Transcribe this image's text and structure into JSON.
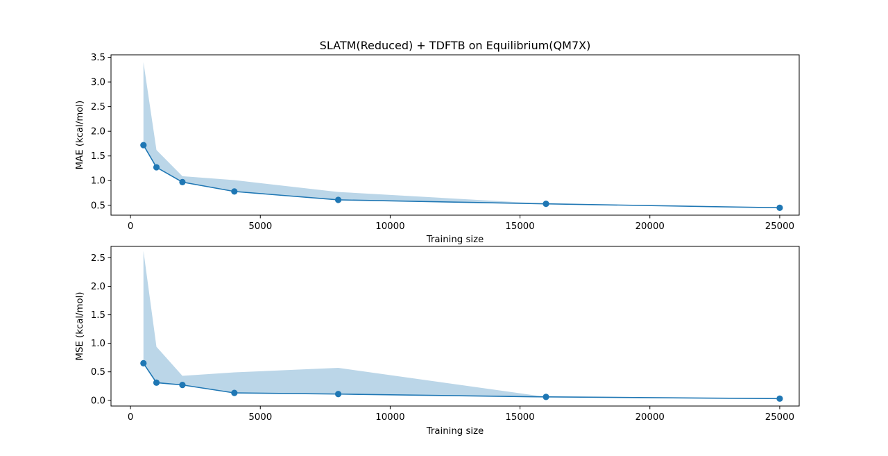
{
  "figure": {
    "title": "SLATM(Reduced) + TDFTB on Equilibrium(QM7X)",
    "line_color": "#1f77b4",
    "band_color": "#1f77b4"
  },
  "chart_data": [
    {
      "type": "line",
      "title": "SLATM(Reduced) + TDFTB on Equilibrium(QM7X)",
      "xlabel": "Training size",
      "ylabel": "MAE (kcal/mol)",
      "xlim": [
        -750,
        25750
      ],
      "ylim": [
        0.3,
        3.55
      ],
      "xticks": [
        0,
        5000,
        10000,
        15000,
        20000,
        25000
      ],
      "xtick_labels": [
        "0",
        "5000",
        "10000",
        "15000",
        "20000",
        "25000"
      ],
      "yticks": [
        0.5,
        1.0,
        1.5,
        2.0,
        2.5,
        3.0,
        3.5
      ],
      "ytick_labels": [
        "0.5",
        "1.0",
        "1.5",
        "2.0",
        "2.5",
        "3.0",
        "3.5"
      ],
      "x": [
        500,
        1000,
        2000,
        4000,
        8000,
        16000,
        25000
      ],
      "series": [
        {
          "values": [
            1.72,
            1.27,
            0.97,
            0.78,
            0.61,
            0.53,
            0.45
          ],
          "upper": [
            3.4,
            1.62,
            1.09,
            1.01,
            0.77,
            0.53,
            0.45
          ],
          "lower": [
            1.72,
            1.27,
            0.97,
            0.78,
            0.61,
            0.53,
            0.45
          ]
        }
      ],
      "grid": false
    },
    {
      "type": "line",
      "title": "",
      "xlabel": "Training size",
      "ylabel": "MSE (kcal/mol)",
      "xlim": [
        -750,
        25750
      ],
      "ylim": [
        -0.1,
        2.7
      ],
      "xticks": [
        0,
        5000,
        10000,
        15000,
        20000,
        25000
      ],
      "xtick_labels": [
        "0",
        "5000",
        "10000",
        "15000",
        "20000",
        "25000"
      ],
      "yticks": [
        0.0,
        0.5,
        1.0,
        1.5,
        2.0,
        2.5
      ],
      "ytick_labels": [
        "0.0",
        "0.5",
        "1.0",
        "1.5",
        "2.0",
        "2.5"
      ],
      "x": [
        500,
        1000,
        2000,
        4000,
        8000,
        16000,
        25000
      ],
      "series": [
        {
          "values": [
            0.65,
            0.31,
            0.27,
            0.13,
            0.11,
            0.06,
            0.03
          ],
          "upper": [
            2.62,
            0.94,
            0.43,
            0.49,
            0.57,
            0.06,
            0.03
          ],
          "lower": [
            0.65,
            0.31,
            0.27,
            0.13,
            0.11,
            0.06,
            0.03
          ]
        }
      ],
      "grid": false
    }
  ]
}
